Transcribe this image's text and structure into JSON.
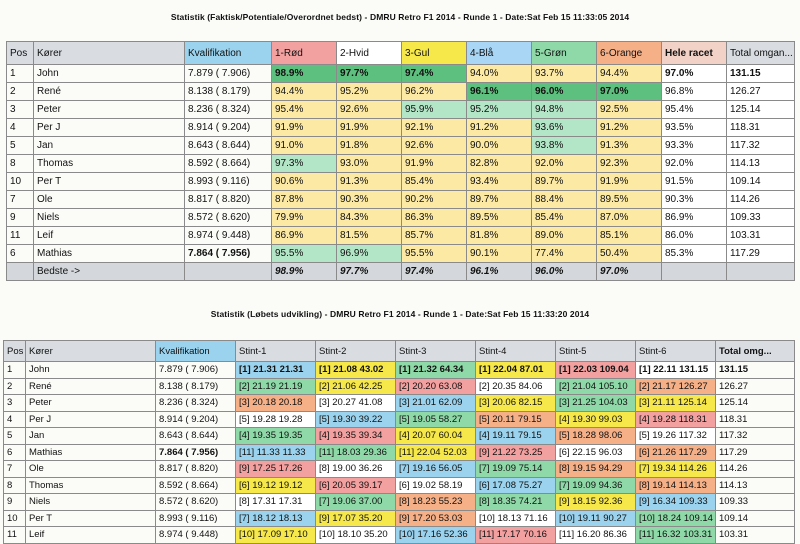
{
  "table1": {
    "title": "Statistik (Faktisk/Potentiale/Overordnet bedst) - DMRU Retro F1 2014 - Runde 1 - Date:Sat Feb 15 11:33:05 2014",
    "headers": [
      "Pos",
      "Kører",
      "Kvalifikation",
      "1-Rød",
      "2-Hvid",
      "3-Gul",
      "4-Blå",
      "5-Grøn",
      "6-Orange",
      "Hele racet",
      "Total omgan..."
    ],
    "rows": [
      {
        "pos": "1",
        "name": "John",
        "qual": "7.879 ( 7.906)",
        "c": [
          "98.9%",
          "97.7%",
          "97.4%",
          "94.0%",
          "93.7%",
          "94.4%",
          "97.0%",
          "131.15"
        ],
        "bg": [
          "#5ec07f",
          "#5ec07f",
          "#5ec07f",
          "#fce9a3",
          "#fce9a3",
          "#fce9a3",
          "#ffffff",
          "#ffffff"
        ],
        "bold": [
          true,
          true,
          true,
          false,
          false,
          false,
          true,
          true
        ],
        "qbold": false
      },
      {
        "pos": "2",
        "name": "René",
        "qual": "8.138 ( 8.179)",
        "c": [
          "94.4%",
          "95.2%",
          "96.2%",
          "96.1%",
          "96.0%",
          "97.0%",
          "96.8%",
          "126.27"
        ],
        "bg": [
          "#fce9a3",
          "#fce9a3",
          "#fce9a3",
          "#5ec07f",
          "#5ec07f",
          "#5ec07f",
          "#ffffff",
          "#ffffff"
        ],
        "bold": [
          false,
          false,
          false,
          true,
          true,
          true,
          false,
          false
        ],
        "qbold": false
      },
      {
        "pos": "3",
        "name": "Peter",
        "qual": "8.236 ( 8.324)",
        "c": [
          "95.4%",
          "92.6%",
          "95.9%",
          "95.2%",
          "94.8%",
          "92.5%",
          "95.4%",
          "125.14"
        ],
        "bg": [
          "#fce9a3",
          "#fce9a3",
          "#b3e6c6",
          "#b3e6c6",
          "#b3e6c6",
          "#fce9a3",
          "#ffffff",
          "#ffffff"
        ],
        "bold": [
          false,
          false,
          false,
          false,
          false,
          false,
          false,
          false
        ],
        "qbold": false
      },
      {
        "pos": "4",
        "name": "Per J",
        "qual": "8.914 ( 9.204)",
        "c": [
          "91.9%",
          "91.9%",
          "92.1%",
          "91.2%",
          "93.6%",
          "91.2%",
          "93.5%",
          "118.31"
        ],
        "bg": [
          "#fce9a3",
          "#fce9a3",
          "#fce9a3",
          "#fce9a3",
          "#b3e6c6",
          "#fce9a3",
          "#ffffff",
          "#ffffff"
        ],
        "bold": [
          false,
          false,
          false,
          false,
          false,
          false,
          false,
          false
        ],
        "qbold": false
      },
      {
        "pos": "5",
        "name": "Jan",
        "qual": "8.643 ( 8.644)",
        "c": [
          "91.0%",
          "91.8%",
          "92.6%",
          "90.0%",
          "93.8%",
          "91.3%",
          "93.3%",
          "117.32"
        ],
        "bg": [
          "#fce9a3",
          "#fce9a3",
          "#fce9a3",
          "#fce9a3",
          "#b3e6c6",
          "#fce9a3",
          "#ffffff",
          "#ffffff"
        ],
        "bold": [
          false,
          false,
          false,
          false,
          false,
          false,
          false,
          false
        ],
        "qbold": false
      },
      {
        "pos": "8",
        "name": "Thomas",
        "qual": "8.592 ( 8.664)",
        "c": [
          "97.3%",
          "93.0%",
          "91.9%",
          "82.8%",
          "92.0%",
          "92.3%",
          "92.0%",
          "114.13"
        ],
        "bg": [
          "#b3e6c6",
          "#fce9a3",
          "#fce9a3",
          "#fce9a3",
          "#fce9a3",
          "#fce9a3",
          "#ffffff",
          "#ffffff"
        ],
        "bold": [
          false,
          false,
          false,
          false,
          false,
          false,
          false,
          false
        ],
        "qbold": false
      },
      {
        "pos": "10",
        "name": "Per T",
        "qual": "8.993 ( 9.116)",
        "c": [
          "90.6%",
          "91.3%",
          "85.4%",
          "93.4%",
          "89.7%",
          "91.9%",
          "91.5%",
          "109.14"
        ],
        "bg": [
          "#fce9a3",
          "#fce9a3",
          "#fce9a3",
          "#fce9a3",
          "#fce9a3",
          "#fce9a3",
          "#ffffff",
          "#ffffff"
        ],
        "bold": [
          false,
          false,
          false,
          false,
          false,
          false,
          false,
          false
        ],
        "qbold": false
      },
      {
        "pos": "7",
        "name": "Ole",
        "qual": "8.817 ( 8.820)",
        "c": [
          "87.8%",
          "90.3%",
          "90.2%",
          "89.7%",
          "88.4%",
          "89.5%",
          "90.3%",
          "114.26"
        ],
        "bg": [
          "#fce9a3",
          "#fce9a3",
          "#fce9a3",
          "#fce9a3",
          "#fce9a3",
          "#fce9a3",
          "#ffffff",
          "#ffffff"
        ],
        "bold": [
          false,
          false,
          false,
          false,
          false,
          false,
          false,
          false
        ],
        "qbold": false
      },
      {
        "pos": "9",
        "name": "Niels",
        "qual": "8.572 ( 8.620)",
        "c": [
          "79.9%",
          "84.3%",
          "86.3%",
          "89.5%",
          "85.4%",
          "87.0%",
          "86.9%",
          "109.33"
        ],
        "bg": [
          "#fce9a3",
          "#fce9a3",
          "#fce9a3",
          "#fce9a3",
          "#fce9a3",
          "#fce9a3",
          "#ffffff",
          "#ffffff"
        ],
        "bold": [
          false,
          false,
          false,
          false,
          false,
          false,
          false,
          false
        ],
        "qbold": false
      },
      {
        "pos": "11",
        "name": "Leif",
        "qual": "8.974 ( 9.448)",
        "c": [
          "86.9%",
          "81.5%",
          "85.7%",
          "81.8%",
          "89.0%",
          "85.1%",
          "86.0%",
          "103.31"
        ],
        "bg": [
          "#fce9a3",
          "#fce9a3",
          "#fce9a3",
          "#fce9a3",
          "#fce9a3",
          "#fce9a3",
          "#ffffff",
          "#ffffff"
        ],
        "bold": [
          false,
          false,
          false,
          false,
          false,
          false,
          false,
          false
        ],
        "qbold": false
      },
      {
        "pos": "6",
        "name": "Mathias",
        "qual": "7.864 ( 7.956)",
        "c": [
          "95.5%",
          "96.9%",
          "95.5%",
          "90.1%",
          "77.4%",
          "50.4%",
          "85.3%",
          "117.29"
        ],
        "bg": [
          "#b3e6c6",
          "#b3e6c6",
          "#fce9a3",
          "#fce9a3",
          "#fce9a3",
          "#fce9a3",
          "#ffffff",
          "#ffffff"
        ],
        "bold": [
          false,
          false,
          false,
          false,
          false,
          false,
          false,
          false
        ],
        "qbold": true
      }
    ],
    "footer": {
      "label": "Bedste ->",
      "values": [
        "98.9%",
        "97.7%",
        "97.4%",
        "96.1%",
        "96.0%",
        "97.0%"
      ]
    }
  },
  "table2": {
    "title": "Statistik (Løbets udvikling) - DMRU Retro F1 2014 - Runde 1 - Date:Sat Feb 15 11:33:20 2014",
    "headers": [
      "Pos",
      "Kører",
      "Kvalifikation",
      "Stint-1",
      "Stint-2",
      "Stint-3",
      "Stint-4",
      "Stint-5",
      "Stint-6",
      "Total omg..."
    ],
    "lane_colors": {
      "1": "#9bd3ee",
      "2": "#8ed9a7",
      "3": "#f5b088",
      "4": "#f6e84a",
      "5": "#9bd3ee",
      "6": "#ffffff",
      "7": "#f6e84a",
      "8": "#8ed9a7",
      "9": "#f3a1a0",
      "10": "#ffffff",
      "11": "#8ed9a7",
      "12": "#f6e84a",
      "13": "#f3a1a0",
      "14": "#8ed9a7",
      "15": "#f6e84a",
      "16": "#9bd3ee",
      "17": "#f5b088",
      "18": "#9bd3ee",
      "19": "#f6e84a",
      "20": "#f3a1a0",
      "21": "#9bd3ee",
      "22": "#f6e84a"
    },
    "rows": [
      {
        "pos": "1",
        "name": "John",
        "qual": "7.879 ( 7.906)",
        "qbold": false,
        "stints": [
          {
            "t": "[1] 21.31 21.31",
            "bg": "#9bd3ee",
            "b": true
          },
          {
            "t": "[1] 21.08 43.02",
            "bg": "#f6e84a",
            "b": true
          },
          {
            "t": "[1] 21.32 64.34",
            "bg": "#8ed9a7",
            "b": true
          },
          {
            "t": "[1] 22.04 87.01",
            "bg": "#f6e84a",
            "b": true
          },
          {
            "t": "[1] 22.03 109.04",
            "bg": "#f3a1a0",
            "b": true
          },
          {
            "t": "[1] 22.11 131.15",
            "bg": "#ffffff",
            "b": true
          }
        ],
        "total": "131.15",
        "tbold": true
      },
      {
        "pos": "2",
        "name": "René",
        "qual": "8.138 ( 8.179)",
        "qbold": false,
        "stints": [
          {
            "t": "[2] 21.19 21.19",
            "bg": "#8ed9a7",
            "b": false
          },
          {
            "t": "[2] 21.06 42.25",
            "bg": "#f6e84a",
            "b": false
          },
          {
            "t": "[2] 20.20 63.08",
            "bg": "#f3a1a0",
            "b": false
          },
          {
            "t": "[2] 20.35 84.06",
            "bg": "#ffffff",
            "b": false
          },
          {
            "t": "[2] 21.04 105.10",
            "bg": "#8ed9a7",
            "b": false
          },
          {
            "t": "[2] 21.17 126.27",
            "bg": "#f5b088",
            "b": false
          }
        ],
        "total": "126.27",
        "tbold": false
      },
      {
        "pos": "3",
        "name": "Peter",
        "qual": "8.236 ( 8.324)",
        "qbold": false,
        "stints": [
          {
            "t": "[3] 20.18 20.18",
            "bg": "#f5b088",
            "b": false
          },
          {
            "t": "[3] 20.27 41.08",
            "bg": "#ffffff",
            "b": false
          },
          {
            "t": "[3] 21.01 62.09",
            "bg": "#9bd3ee",
            "b": false
          },
          {
            "t": "[3] 20.06 82.15",
            "bg": "#f6e84a",
            "b": false
          },
          {
            "t": "[3] 21.25 104.03",
            "bg": "#8ed9a7",
            "b": false
          },
          {
            "t": "[3] 21.11 125.14",
            "bg": "#f6e84a",
            "b": false
          }
        ],
        "total": "125.14",
        "tbold": false
      },
      {
        "pos": "4",
        "name": "Per J",
        "qual": "8.914 ( 9.204)",
        "qbold": false,
        "stints": [
          {
            "t": "[5] 19.28 19.28",
            "bg": "#ffffff",
            "b": false
          },
          {
            "t": "[5] 19.30 39.22",
            "bg": "#9bd3ee",
            "b": false
          },
          {
            "t": "[5] 19.05 58.27",
            "bg": "#8ed9a7",
            "b": false
          },
          {
            "t": "[5] 20.11 79.15",
            "bg": "#f5b088",
            "b": false
          },
          {
            "t": "[4] 19.30 99.03",
            "bg": "#f6e84a",
            "b": false
          },
          {
            "t": "[4] 19.28 118.31",
            "bg": "#f3a1a0",
            "b": false
          }
        ],
        "total": "118.31",
        "tbold": false
      },
      {
        "pos": "5",
        "name": "Jan",
        "qual": "8.643 ( 8.644)",
        "qbold": false,
        "stints": [
          {
            "t": "[4] 19.35 19.35",
            "bg": "#8ed9a7",
            "b": false
          },
          {
            "t": "[4] 19.35 39.34",
            "bg": "#f3a1a0",
            "b": false
          },
          {
            "t": "[4] 20.07 60.04",
            "bg": "#f6e84a",
            "b": false
          },
          {
            "t": "[4] 19.11 79.15",
            "bg": "#9bd3ee",
            "b": false
          },
          {
            "t": "[5] 18.28 98.06",
            "bg": "#f5b088",
            "b": false
          },
          {
            "t": "[5] 19.26 117.32",
            "bg": "#ffffff",
            "b": false
          }
        ],
        "total": "117.32",
        "tbold": false
      },
      {
        "pos": "6",
        "name": "Mathias",
        "qual": "7.864 ( 7.956)",
        "qbold": true,
        "stints": [
          {
            "t": "[11] 11.33 11.33",
            "bg": "#9bd3ee",
            "b": false
          },
          {
            "t": "[11] 18.03 29.36",
            "bg": "#8ed9a7",
            "b": false
          },
          {
            "t": "[11] 22.04 52.03",
            "bg": "#f6e84a",
            "b": false
          },
          {
            "t": "[9] 21.22 73.25",
            "bg": "#f3a1a0",
            "b": false
          },
          {
            "t": "[6] 22.15 96.03",
            "bg": "#ffffff",
            "b": false
          },
          {
            "t": "[6] 21.26 117.29",
            "bg": "#f5b088",
            "b": false
          }
        ],
        "total": "117.29",
        "tbold": false
      },
      {
        "pos": "7",
        "name": "Ole",
        "qual": "8.817 ( 8.820)",
        "qbold": false,
        "stints": [
          {
            "t": "[9] 17.25 17.26",
            "bg": "#f3a1a0",
            "b": false
          },
          {
            "t": "[8] 19.00 36.26",
            "bg": "#ffffff",
            "b": false
          },
          {
            "t": "[7] 19.16 56.05",
            "bg": "#9bd3ee",
            "b": false
          },
          {
            "t": "[7] 19.09 75.14",
            "bg": "#8ed9a7",
            "b": false
          },
          {
            "t": "[8] 19.15 94.29",
            "bg": "#f5b088",
            "b": false
          },
          {
            "t": "[7] 19.34 114.26",
            "bg": "#f6e84a",
            "b": false
          }
        ],
        "total": "114.26",
        "tbold": false
      },
      {
        "pos": "8",
        "name": "Thomas",
        "qual": "8.592 ( 8.664)",
        "qbold": false,
        "stints": [
          {
            "t": "[6] 19.12 19.12",
            "bg": "#f6e84a",
            "b": false
          },
          {
            "t": "[6] 20.05 39.17",
            "bg": "#f3a1a0",
            "b": false
          },
          {
            "t": "[6] 19.02 58.19",
            "bg": "#ffffff",
            "b": false
          },
          {
            "t": "[6] 17.08 75.27",
            "bg": "#9bd3ee",
            "b": false
          },
          {
            "t": "[7] 19.09 94.36",
            "bg": "#8ed9a7",
            "b": false
          },
          {
            "t": "[8] 19.14 114.13",
            "bg": "#f5b088",
            "b": false
          }
        ],
        "total": "114.13",
        "tbold": false
      },
      {
        "pos": "9",
        "name": "Niels",
        "qual": "8.572 ( 8.620)",
        "qbold": false,
        "stints": [
          {
            "t": "[8] 17.31 17.31",
            "bg": "#ffffff",
            "b": false
          },
          {
            "t": "[7] 19.06 37.00",
            "bg": "#8ed9a7",
            "b": false
          },
          {
            "t": "[8] 18.23 55.23",
            "bg": "#f5b088",
            "b": false
          },
          {
            "t": "[8] 18.35 74.21",
            "bg": "#8ed9a7",
            "b": false
          },
          {
            "t": "[9] 18.15 92.36",
            "bg": "#f6e84a",
            "b": false
          },
          {
            "t": "[9] 16.34 109.33",
            "bg": "#9bd3ee",
            "b": false
          }
        ],
        "total": "109.33",
        "tbold": false
      },
      {
        "pos": "10",
        "name": "Per T",
        "qual": "8.993 ( 9.116)",
        "qbold": false,
        "stints": [
          {
            "t": "[7] 18.12 18.13",
            "bg": "#9bd3ee",
            "b": false
          },
          {
            "t": "[9] 17.07 35.20",
            "bg": "#f6e84a",
            "b": false
          },
          {
            "t": "[9] 17.20 53.03",
            "bg": "#f5b088",
            "b": false
          },
          {
            "t": "[10] 18.13 71.16",
            "bg": "#ffffff",
            "b": false
          },
          {
            "t": "[10] 19.11 90.27",
            "bg": "#9bd3ee",
            "b": false
          },
          {
            "t": "[10] 18.24 109.14",
            "bg": "#8ed9a7",
            "b": false
          }
        ],
        "total": "109.14",
        "tbold": false
      },
      {
        "pos": "11",
        "name": "Leif",
        "qual": "8.974 ( 9.448)",
        "qbold": false,
        "stints": [
          {
            "t": "[10] 17.09 17.10",
            "bg": "#f6e84a",
            "b": false
          },
          {
            "t": "[10] 18.10 35.20",
            "bg": "#ffffff",
            "b": false
          },
          {
            "t": "[10] 17.16 52.36",
            "bg": "#9bd3ee",
            "b": false
          },
          {
            "t": "[11] 17.17 70.16",
            "bg": "#f3a1a0",
            "b": false
          },
          {
            "t": "[11] 16.20 86.36",
            "bg": "#ffffff",
            "b": false
          },
          {
            "t": "[11] 16.32 103.31",
            "bg": "#8ed9a7",
            "b": false
          }
        ],
        "total": "103.31",
        "tbold": false
      }
    ]
  }
}
